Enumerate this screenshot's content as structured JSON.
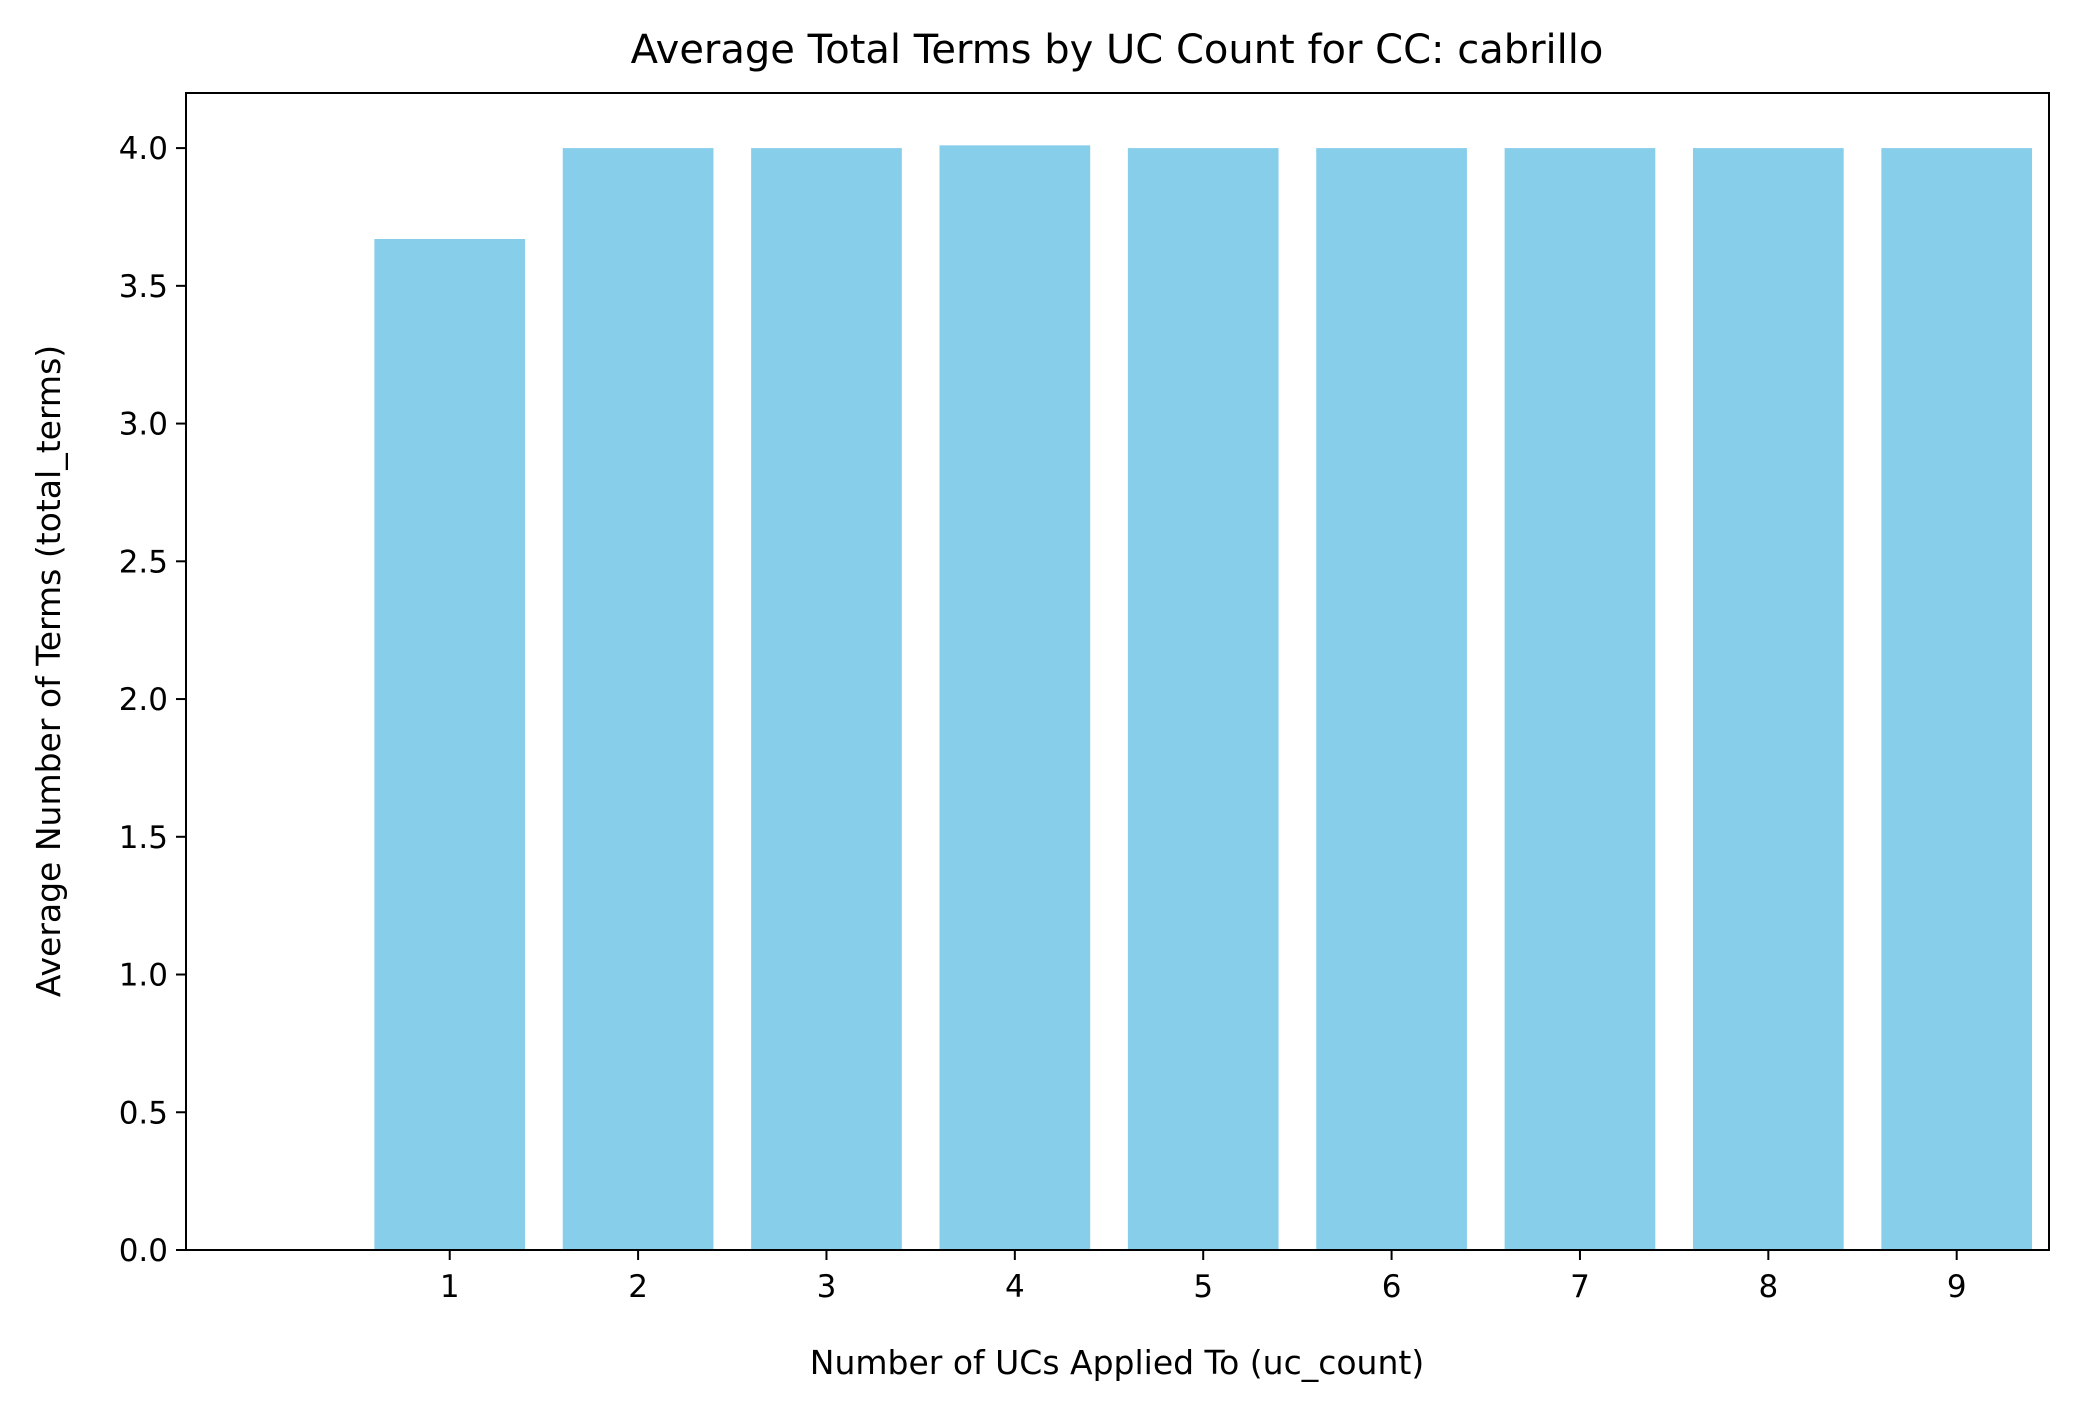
{
  "chart_data": {
    "type": "bar",
    "title": "Average Total Terms by UC Count for CC: cabrillo",
    "xlabel": "Number of UCs Applied To (uc_count)",
    "ylabel": "Average Number of Terms (total_terms)",
    "categories": [
      "1",
      "2",
      "3",
      "4",
      "5",
      "6",
      "7",
      "8",
      "9"
    ],
    "values": [
      3.67,
      4.0,
      4.0,
      4.01,
      4.0,
      4.0,
      4.0,
      4.0,
      4.0
    ],
    "ylim": [
      0,
      4.2
    ],
    "yticks": [
      "0.0",
      "0.5",
      "1.0",
      "1.5",
      "2.0",
      "2.5",
      "3.0",
      "3.5",
      "4.0"
    ],
    "grid": false,
    "legend": "none",
    "bar_color": "#87CEEB"
  }
}
